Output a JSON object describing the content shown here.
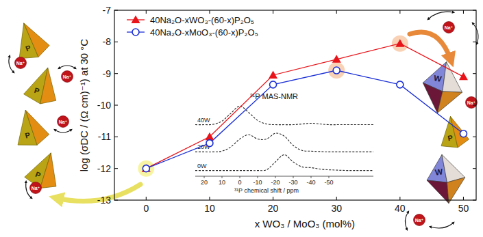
{
  "chart_data": [
    {
      "type": "line",
      "x_label": "x WO₃ / MoO₃ (mol%)",
      "y_label": "log (σDC / (Ω cm)⁻¹) at 30 °C",
      "x": [
        0,
        10,
        20,
        30,
        40,
        50
      ],
      "xlim": [
        -5,
        52
      ],
      "xticks": [
        0,
        10,
        20,
        30,
        40,
        50
      ],
      "ylim": [
        -13,
        -7
      ],
      "yticks": [
        -13,
        -12,
        -11,
        -10,
        -9,
        -8,
        -7
      ],
      "legend": "upper left",
      "series": [
        {
          "name": "40Na₂O-xWO₃-(60-x)P₂O₅",
          "color": "#e8141a",
          "marker": "triangle",
          "line_style": "solid",
          "values": [
            -12.0,
            -11.0,
            -9.05,
            -8.55,
            -8.05,
            -9.1
          ]
        },
        {
          "name": "40Na₂O-xMoO₃-(60-x)P₂O₅",
          "color": "#1a2fd6",
          "marker": "open-circle",
          "line_style": "solid",
          "values": [
            -12.0,
            -11.2,
            -9.35,
            -8.9,
            -9.35,
            -10.9
          ]
        }
      ]
    },
    {
      "type": "line",
      "title": "³¹P MAS-NMR",
      "x_label": "³¹P chemical shift / ppm",
      "x": [
        25,
        20,
        15,
        10,
        5,
        0,
        -5,
        -10,
        -15,
        -20,
        -25,
        -30,
        -35,
        -40,
        -45,
        -50,
        -55,
        -60,
        -65,
        -70,
        -75
      ],
      "xlim": [
        25,
        -75
      ],
      "xticks": [
        20,
        10,
        0,
        -10,
        -20,
        -30,
        -40,
        -50
      ],
      "ylim": [
        0,
        10.5
      ],
      "tick_labels": "x",
      "line_style": "dashed",
      "series": [
        {
          "name": "40W",
          "color": "#222222",
          "values": [
            7.2,
            7.2,
            7.25,
            7.7,
            8.8,
            9.8,
            8.9,
            7.8,
            7.3,
            7.2,
            7.2,
            7.2,
            7.3,
            7.4,
            7.3,
            7.2,
            7.2,
            7.2,
            7.2,
            7.2,
            7.2
          ]
        },
        {
          "name": "20W",
          "color": "#222222",
          "values": [
            3.4,
            3.4,
            3.4,
            3.5,
            4.1,
            5.2,
            5.8,
            5.2,
            5.2,
            6.0,
            5.6,
            4.3,
            3.6,
            3.5,
            3.45,
            3.4,
            3.4,
            3.4,
            3.4,
            3.4,
            3.4
          ]
        },
        {
          "name": "0W",
          "color": "#222222",
          "values": [
            0.8,
            0.8,
            0.8,
            0.8,
            0.8,
            0.8,
            0.8,
            0.8,
            0.9,
            2.0,
            3.0,
            2.0,
            1.3,
            1.2,
            1.0,
            0.9,
            0.85,
            0.8,
            0.8,
            0.8,
            0.8
          ]
        }
      ]
    }
  ],
  "illustration": {
    "ion": "Na⁺",
    "phosphorus": "P",
    "tungsten": "W"
  }
}
